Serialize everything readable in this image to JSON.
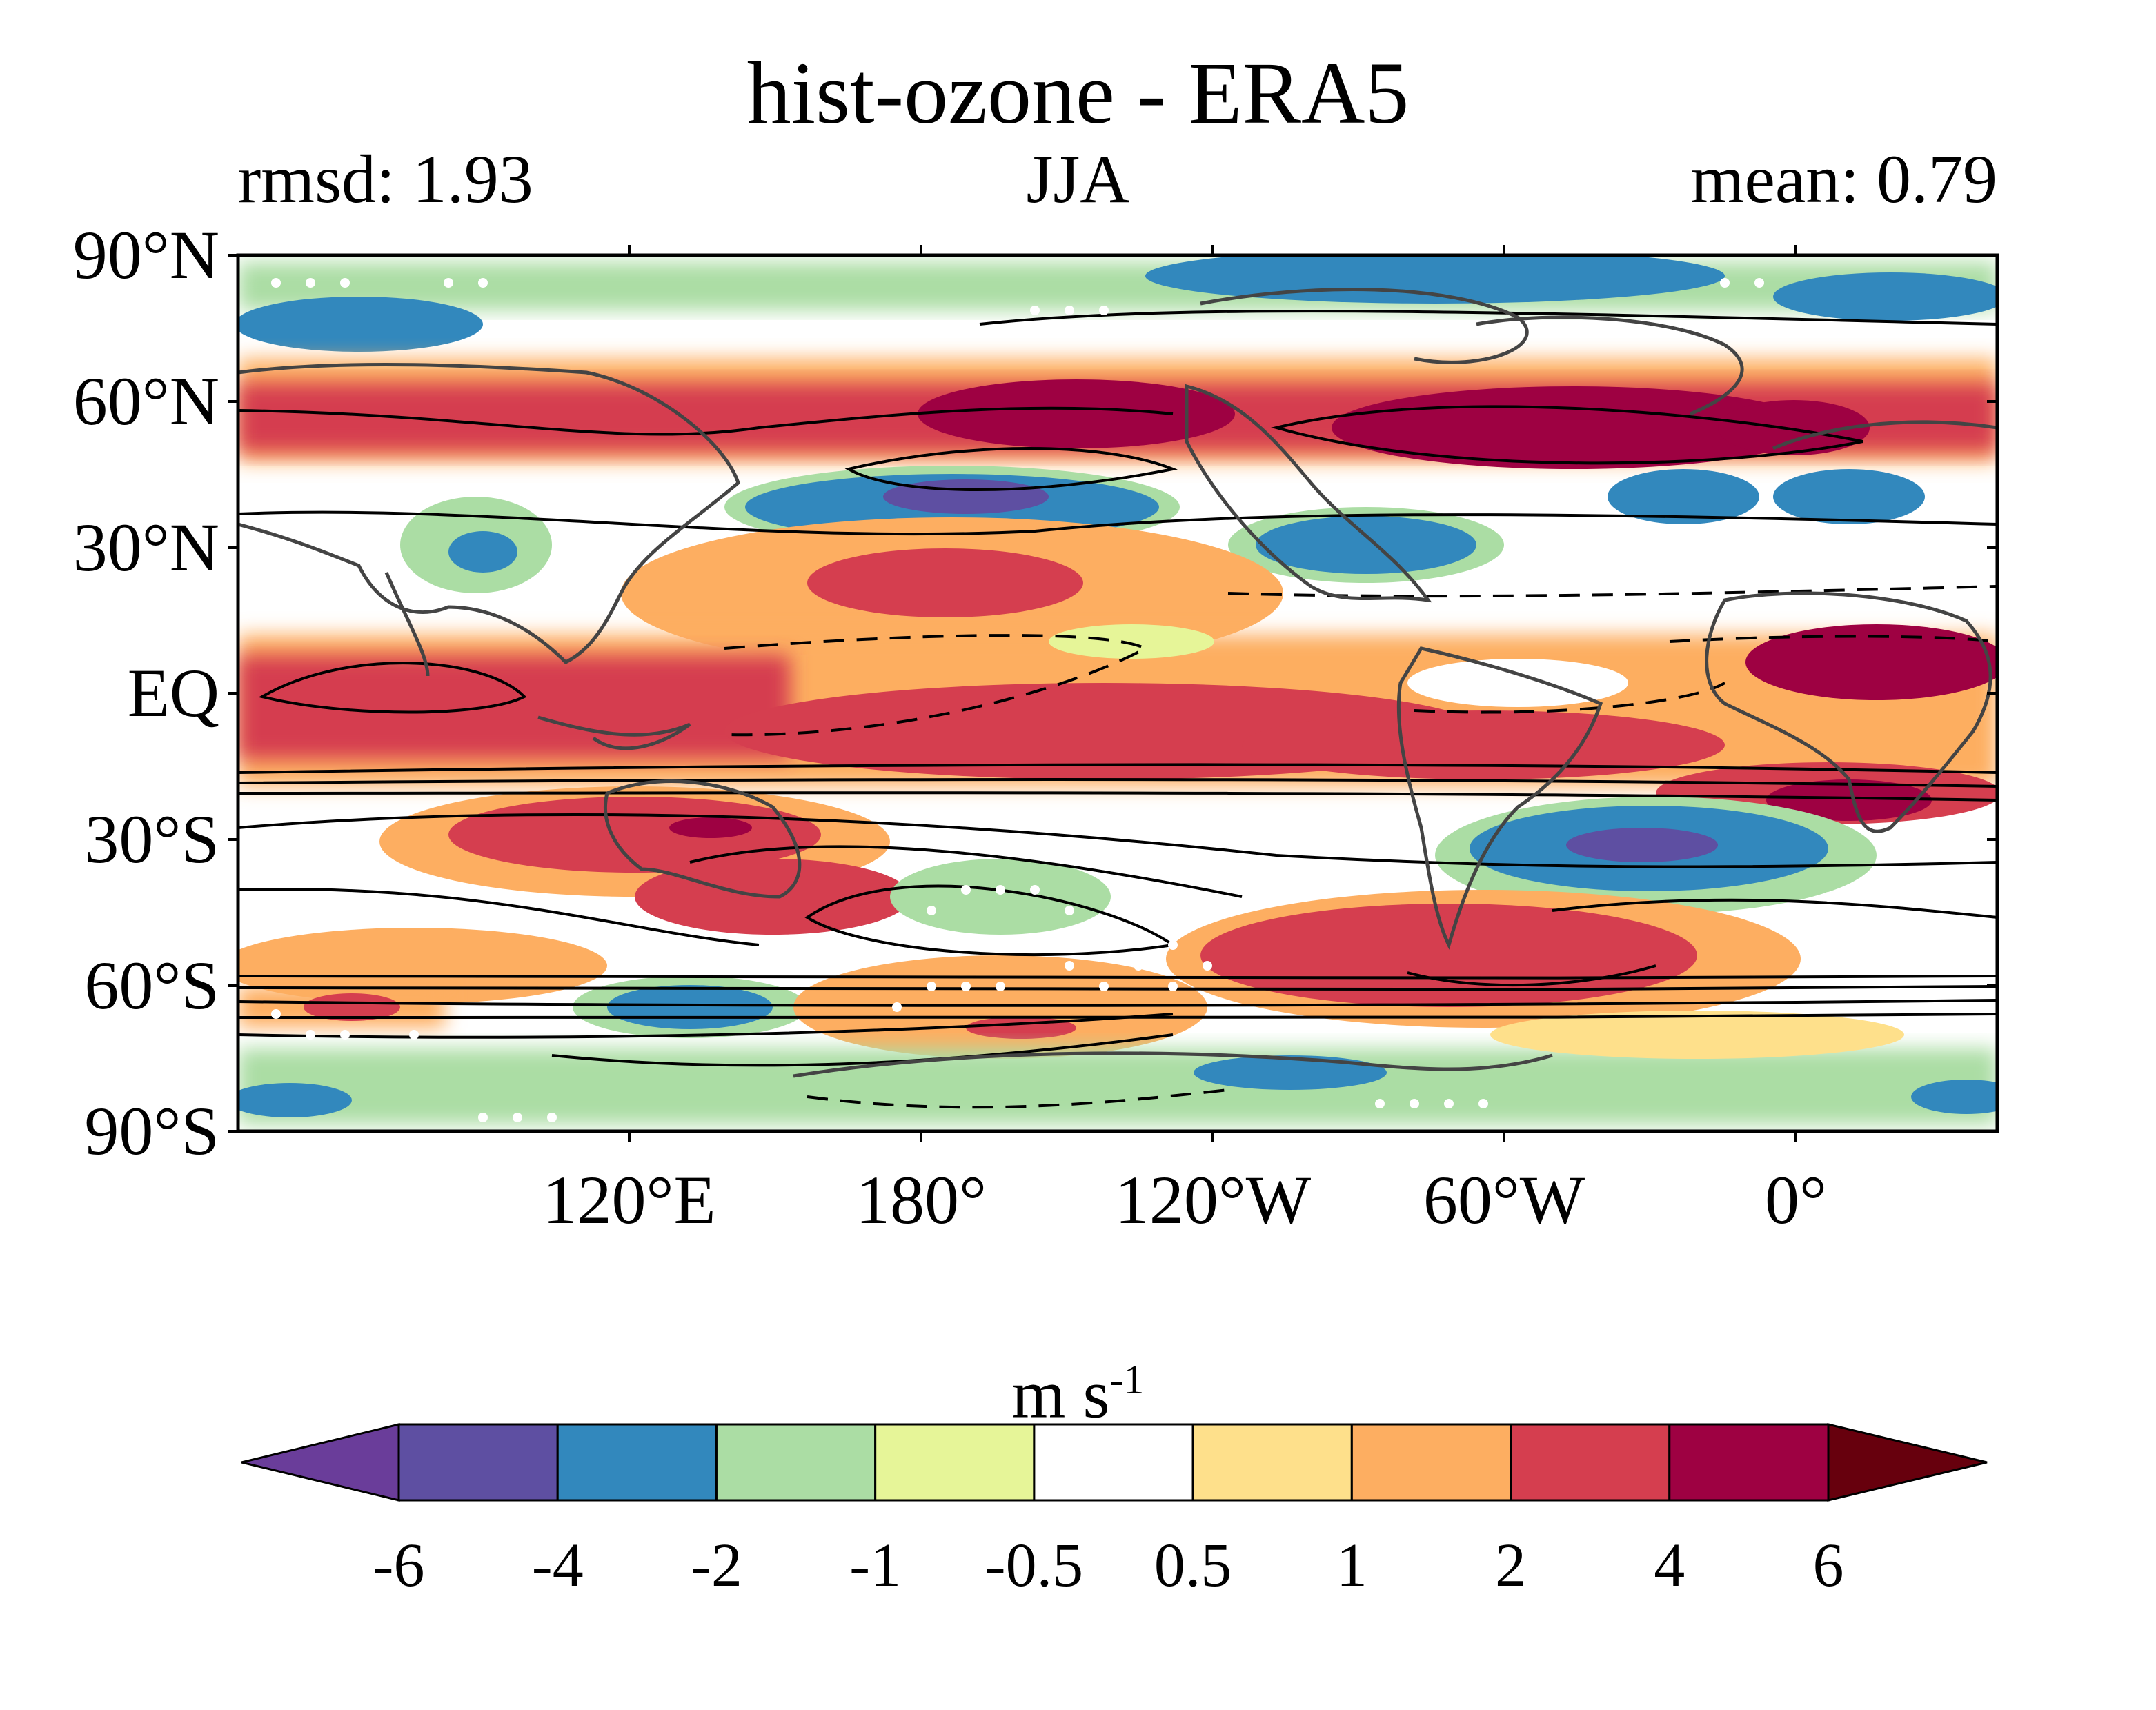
{
  "title": "hist-ozone - ERA5",
  "subtitle_left": "rmsd: 1.93",
  "subtitle_center": "JJA",
  "subtitle_right": "mean: 0.79",
  "map": {
    "lat_ticks": [
      "90°N",
      "60°N",
      "30°N",
      "EQ",
      "30°S",
      "60°S",
      "90°S"
    ],
    "lon_ticks": [
      "120°E",
      "180°",
      "120°W",
      "60°W",
      "0°"
    ]
  },
  "colorbar": {
    "units_main": "m s",
    "units_exp": "-1",
    "tick_labels": [
      "-6",
      "-4",
      "-2",
      "-1",
      "-0.5",
      "0.5",
      "1",
      "2",
      "4",
      "6"
    ],
    "colors": [
      "#5e4fa2",
      "#3288bd",
      "#abdda4",
      "#e6f598",
      "#ffffff",
      "#fee08b",
      "#fdae61",
      "#d53e4f",
      "#9e0142"
    ],
    "under_color": "#6a3d9a",
    "over_color": "#67000d"
  }
}
